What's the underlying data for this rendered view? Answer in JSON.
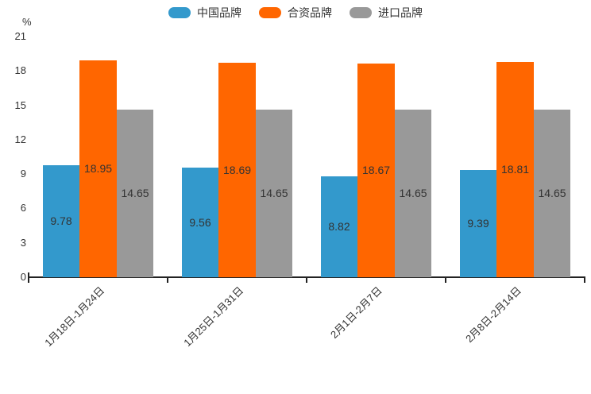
{
  "chart_data": {
    "type": "bar",
    "unit_label": "%",
    "categories": [
      "1月18日-1月24日",
      "1月25日-1月31日",
      "2月1日-2月7日",
      "2月8日-2月14日"
    ],
    "series": [
      {
        "name": "中国品牌",
        "color": "#3399CC",
        "values": [
          9.78,
          9.56,
          8.82,
          9.39
        ]
      },
      {
        "name": "合资品牌",
        "color": "#FF6600",
        "values": [
          18.95,
          18.69,
          18.67,
          18.81
        ]
      },
      {
        "name": "进口品牌",
        "color": "#999999",
        "values": [
          14.65,
          14.65,
          14.65,
          14.65
        ]
      }
    ],
    "y_ticks": [
      0,
      3,
      6,
      9,
      12,
      15,
      18,
      21
    ],
    "ylim": [
      0,
      21
    ],
    "legend_position": "top",
    "grid": false,
    "value_labels_shown": true,
    "colors": {
      "axis": "#222222",
      "text": "#333333",
      "background": "#FFFFFF"
    }
  }
}
